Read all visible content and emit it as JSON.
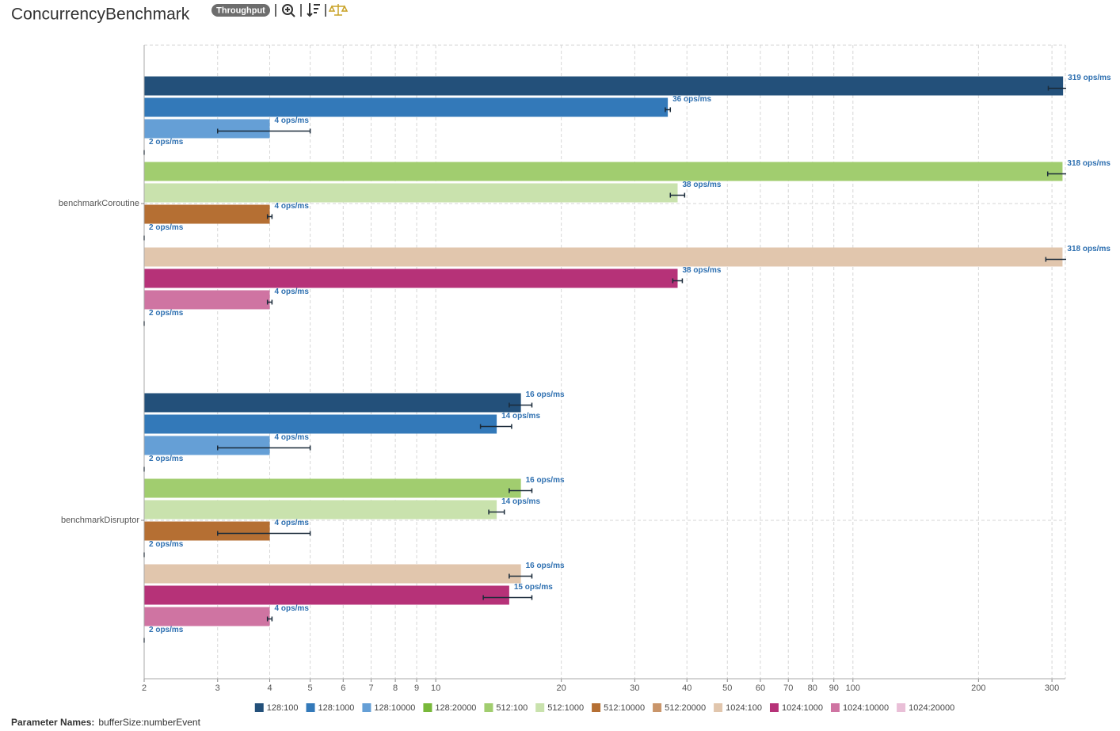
{
  "chart_data": {
    "type": "bar",
    "orientation": "horizontal",
    "title": "ConcurrencyBenchmark",
    "badge": "Throughput",
    "parameter_label": "Parameter Names:",
    "parameter_names": "bufferSize:numberEvent",
    "categories": [
      "benchmarkCoroutine",
      "benchmarkDisruptor"
    ],
    "log_x": true,
    "grid": true,
    "legend": "bottom",
    "xlim": [
      2,
      323
    ],
    "xticks": [
      2,
      3,
      4,
      5,
      6,
      7,
      8,
      9,
      10,
      20,
      30,
      40,
      50,
      60,
      70,
      80,
      90,
      100,
      200,
      300
    ],
    "series": [
      {
        "name": "128:100",
        "color": "#23507a",
        "values": [
          319,
          16
        ],
        "errors": [
          25,
          1
        ],
        "value_labels": [
          "319 ops/ms",
          "16 ops/ms"
        ]
      },
      {
        "name": "128:1000",
        "color": "#3379b9",
        "values": [
          36,
          14
        ],
        "errors": [
          0.5,
          1.2
        ],
        "value_labels": [
          "36 ops/ms",
          "14 ops/ms"
        ]
      },
      {
        "name": "128:10000",
        "color": "#659fd6",
        "values": [
          4,
          4
        ],
        "errors": [
          1,
          1
        ],
        "value_labels": [
          "4 ops/ms",
          "4 ops/ms"
        ]
      },
      {
        "name": "128:20000",
        "color": "#78b83a",
        "values": [
          2,
          2
        ],
        "errors": [
          0,
          0
        ],
        "value_labels": [
          "2 ops/ms",
          "2 ops/ms"
        ]
      },
      {
        "name": "512:100",
        "color": "#a1cd6f",
        "values": [
          318,
          16
        ],
        "errors": [
          25,
          1
        ],
        "value_labels": [
          "318 ops/ms",
          "16 ops/ms"
        ]
      },
      {
        "name": "512:1000",
        "color": "#c9e2ad",
        "values": [
          38,
          14
        ],
        "errors": [
          1.5,
          0.6
        ],
        "value_labels": [
          "38 ops/ms",
          "14 ops/ms"
        ]
      },
      {
        "name": "512:10000",
        "color": "#b56f33",
        "values": [
          4,
          4
        ],
        "errors": [
          0.05,
          1
        ],
        "value_labels": [
          "4 ops/ms",
          "4 ops/ms"
        ]
      },
      {
        "name": "512:20000",
        "color": "#c9956a",
        "values": [
          2,
          2
        ],
        "errors": [
          0,
          0
        ],
        "value_labels": [
          "2 ops/ms",
          "2 ops/ms"
        ]
      },
      {
        "name": "1024:100",
        "color": "#e1c6ad",
        "values": [
          318,
          16
        ],
        "errors": [
          28,
          1
        ],
        "value_labels": [
          "318 ops/ms",
          "16 ops/ms"
        ]
      },
      {
        "name": "1024:1000",
        "color": "#b63278",
        "values": [
          38,
          15
        ],
        "errors": [
          1,
          2
        ],
        "value_labels": [
          "38 ops/ms",
          "15 ops/ms"
        ]
      },
      {
        "name": "1024:10000",
        "color": "#cf74a2",
        "values": [
          4,
          4
        ],
        "errors": [
          0.05,
          0.05
        ],
        "value_labels": [
          "4 ops/ms",
          "4 ops/ms"
        ]
      },
      {
        "name": "1024:20000",
        "color": "#e9bfd7",
        "values": [
          2,
          2
        ],
        "errors": [
          0,
          0
        ],
        "value_labels": [
          "2 ops/ms",
          "2 ops/ms"
        ]
      }
    ]
  }
}
